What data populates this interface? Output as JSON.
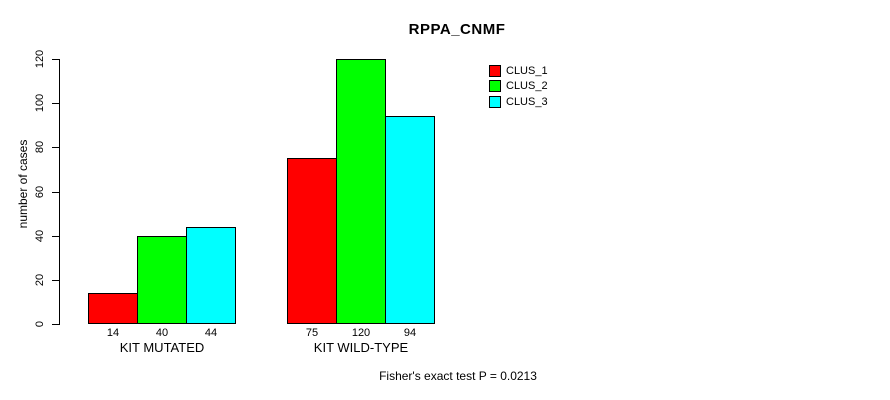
{
  "chart_data": {
    "type": "bar",
    "title": "RPPA_CNMF",
    "ylabel": "number of cases",
    "xlabel": "",
    "footer": "Fisher's exact test P = 0.0213",
    "categories": [
      "KIT MUTATED",
      "KIT WILD-TYPE"
    ],
    "series": [
      {
        "name": "CLUS_1",
        "color": "#ff0000",
        "values": [
          14,
          75
        ]
      },
      {
        "name": "CLUS_2",
        "color": "#00ff00",
        "values": [
          40,
          120
        ]
      },
      {
        "name": "CLUS_3",
        "color": "#00ffff",
        "values": [
          44,
          94
        ]
      }
    ],
    "bar_value_labels": [
      [
        14,
        40,
        44
      ],
      [
        75,
        120,
        94
      ]
    ],
    "ylim": [
      0,
      120
    ],
    "yticks": [
      0,
      20,
      40,
      60,
      80,
      100,
      120
    ],
    "legend_position": "top-right",
    "grid": false,
    "bar_border_color": "#000000",
    "axis_color": "#000000",
    "background_color": "#ffffff"
  }
}
